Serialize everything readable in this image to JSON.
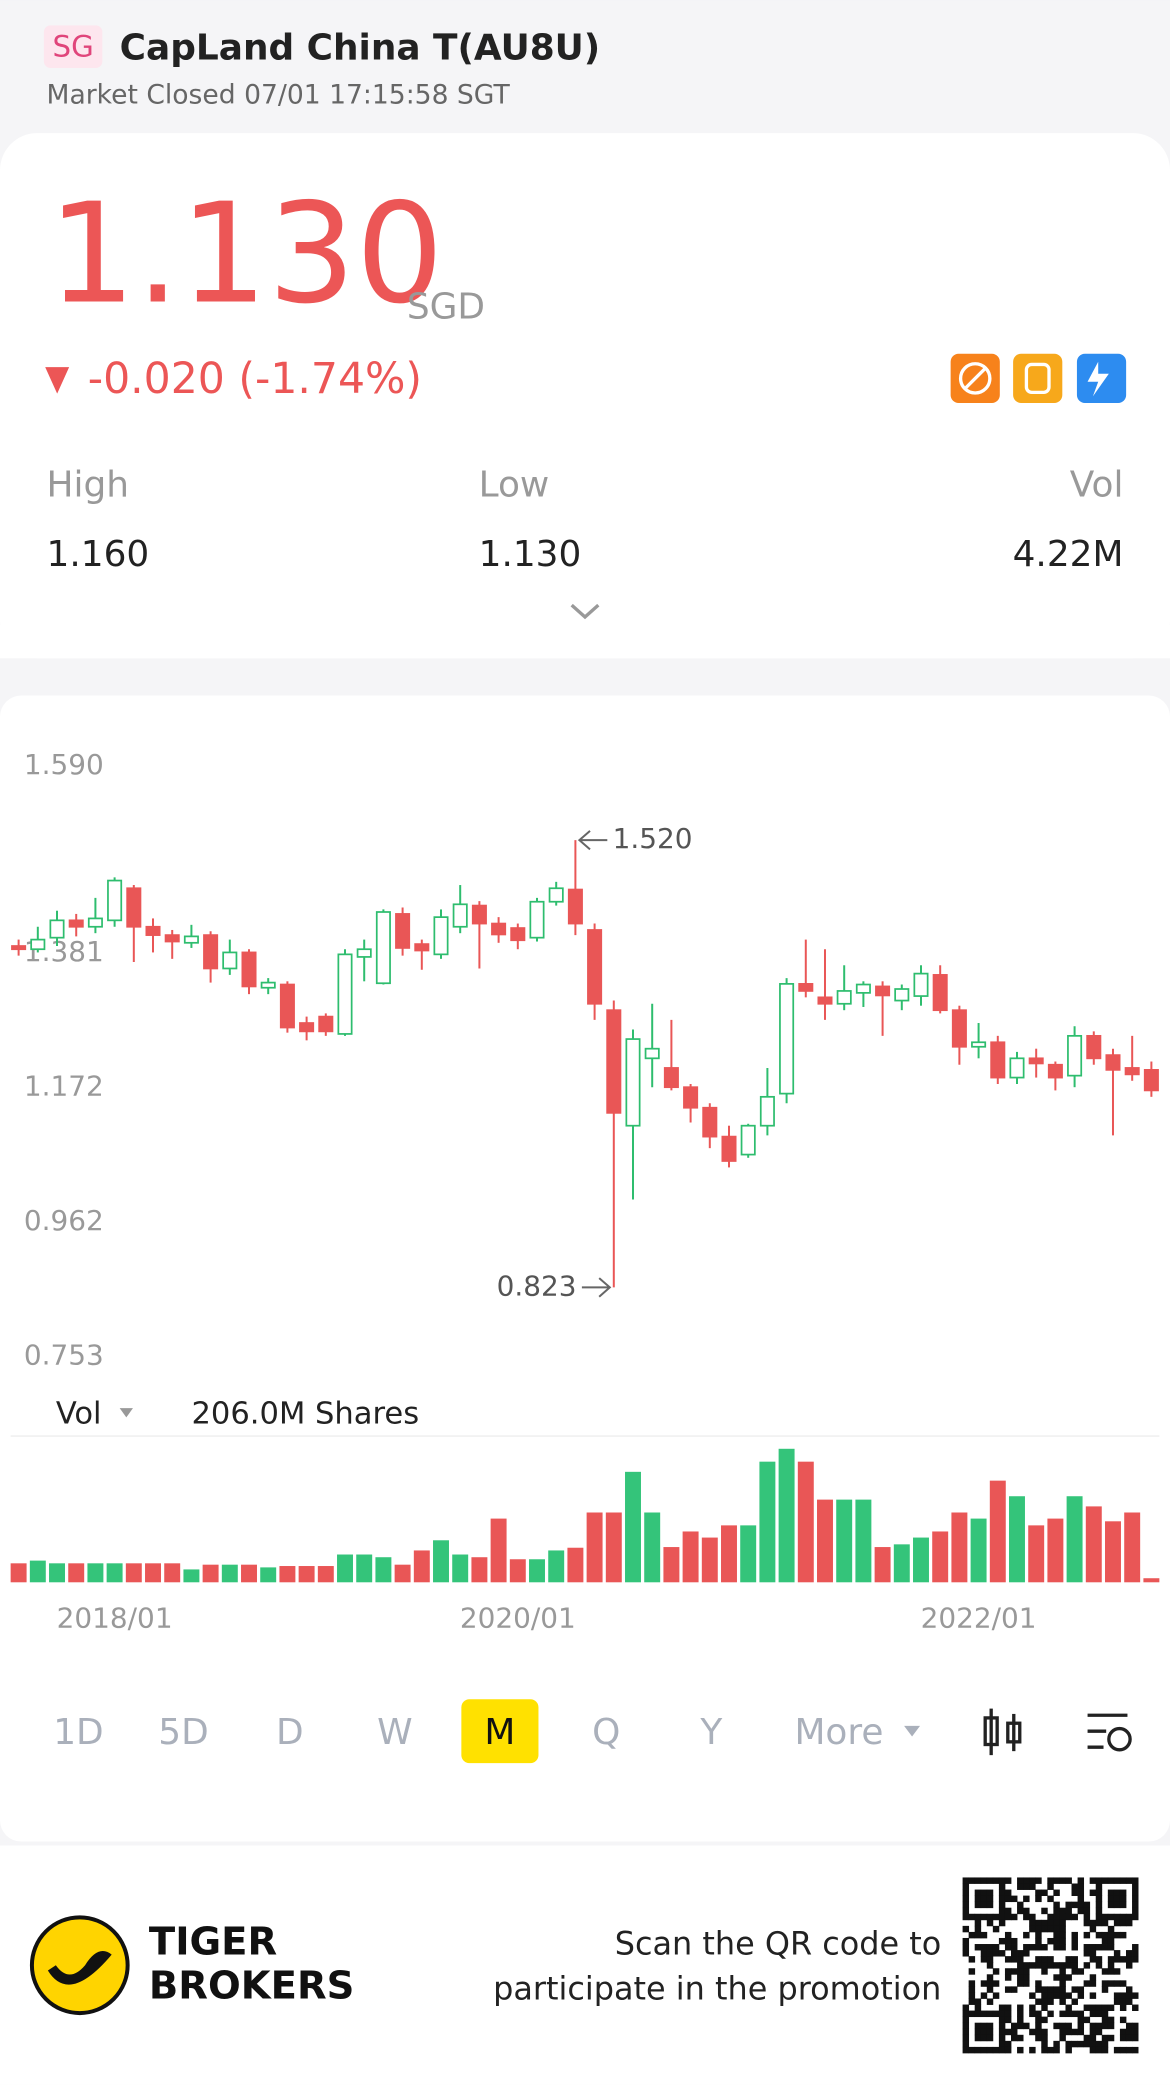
{
  "header": {
    "badge": "SG",
    "name": "CapLand China T(AU8U)",
    "status": "Market Closed 07/01 17:15:58 SGT"
  },
  "quote": {
    "price": "1.130",
    "currency": "SGD",
    "change": "-0.020 (-1.74%)",
    "stats": [
      {
        "label": "High",
        "value": "1.160"
      },
      {
        "label": "Low",
        "value": "1.130"
      },
      {
        "label": "Vol",
        "value": "4.22M"
      }
    ]
  },
  "chart_data": {
    "type": "candlestick",
    "up_color": "#2ebd6e",
    "down_color": "#e95656",
    "open": [
      1.355,
      1.35,
      1.368,
      1.395,
      1.385,
      1.395,
      1.445,
      1.385,
      1.372,
      1.36,
      1.372,
      1.32,
      1.345,
      1.29,
      1.295,
      1.235,
      1.245,
      1.218,
      1.338,
      1.297,
      1.405,
      1.358,
      1.342,
      1.385,
      1.418,
      1.39,
      1.383,
      1.368,
      1.424,
      1.443,
      1.38,
      1.255,
      1.075,
      1.18,
      1.165,
      1.135,
      1.103,
      1.058,
      1.03,
      1.075,
      1.125,
      1.296,
      1.275,
      1.265,
      1.282,
      1.292,
      1.27,
      1.277,
      1.31,
      1.255,
      1.198,
      1.205,
      1.15,
      1.18,
      1.17,
      1.153,
      1.215,
      1.185,
      1.165,
      1.162
    ],
    "high": [
      1.365,
      1.385,
      1.41,
      1.405,
      1.43,
      1.462,
      1.45,
      1.398,
      1.38,
      1.388,
      1.378,
      1.365,
      1.35,
      1.305,
      1.3,
      1.245,
      1.25,
      1.35,
      1.365,
      1.412,
      1.415,
      1.365,
      1.412,
      1.45,
      1.425,
      1.4,
      1.39,
      1.43,
      1.455,
      1.52,
      1.39,
      1.27,
      1.225,
      1.265,
      1.24,
      1.14,
      1.11,
      1.075,
      1.078,
      1.165,
      1.305,
      1.365,
      1.35,
      1.325,
      1.3,
      1.3,
      1.295,
      1.325,
      1.325,
      1.262,
      1.235,
      1.215,
      1.19,
      1.195,
      1.175,
      1.23,
      1.222,
      1.195,
      1.215,
      1.175
    ],
    "low": [
      1.34,
      1.345,
      1.355,
      1.37,
      1.375,
      1.385,
      1.33,
      1.345,
      1.335,
      1.352,
      1.298,
      1.31,
      1.28,
      1.28,
      1.22,
      1.208,
      1.215,
      1.215,
      1.3,
      1.295,
      1.34,
      1.318,
      1.335,
      1.375,
      1.32,
      1.36,
      1.35,
      1.362,
      1.418,
      1.372,
      1.24,
      0.823,
      0.96,
      1.135,
      1.13,
      1.08,
      1.04,
      1.01,
      1.025,
      1.06,
      1.11,
      1.275,
      1.24,
      1.255,
      1.26,
      1.215,
      1.255,
      1.262,
      1.25,
      1.17,
      1.18,
      1.14,
      1.14,
      1.15,
      1.13,
      1.135,
      1.17,
      1.06,
      1.145,
      1.12
    ],
    "close": [
      1.35,
      1.365,
      1.395,
      1.385,
      1.398,
      1.457,
      1.385,
      1.372,
      1.362,
      1.37,
      1.32,
      1.345,
      1.292,
      1.298,
      1.228,
      1.222,
      1.222,
      1.342,
      1.35,
      1.408,
      1.352,
      1.348,
      1.4,
      1.42,
      1.39,
      1.373,
      1.364,
      1.424,
      1.445,
      1.39,
      1.265,
      1.095,
      1.21,
      1.195,
      1.135,
      1.103,
      1.058,
      1.02,
      1.075,
      1.12,
      1.296,
      1.285,
      1.265,
      1.285,
      1.295,
      1.278,
      1.288,
      1.312,
      1.255,
      1.198,
      1.205,
      1.15,
      1.18,
      1.172,
      1.15,
      1.215,
      1.18,
      1.162,
      1.155,
      1.13
    ],
    "ylim": [
      0.753,
      1.59
    ],
    "yticks": [
      {
        "value": 1.59,
        "label": "1.590"
      },
      1.381,
      1.172,
      0.962,
      0.753
    ],
    "max_label": {
      "value": 1.52,
      "label": "1.520"
    },
    "min_label": 0.823,
    "xticks": [
      {
        "value": 5,
        "label": "2018/01"
      },
      {
        "value": 26,
        "label": "2020/01"
      },
      {
        "value": 50,
        "label": "2022/01"
      }
    ],
    "volume": {
      "label": "Vol",
      "text": "206.0M Shares",
      "ylim": [
        0,
        206
      ],
      "values": [
        28,
        32,
        28,
        28,
        28,
        28,
        28,
        28,
        28,
        19,
        26,
        26,
        26,
        22,
        24,
        24,
        24,
        41,
        41,
        37,
        26,
        47,
        62,
        41,
        37,
        94,
        34,
        34,
        47,
        51,
        103,
        103,
        163,
        103,
        52,
        75,
        66,
        84,
        84,
        178,
        197,
        178,
        122,
        122,
        122,
        52,
        56,
        66,
        75,
        103,
        94,
        150,
        127,
        84,
        94,
        127,
        112,
        90,
        103,
        6
      ]
    }
  },
  "periods": {
    "items": [
      "1D",
      "5D",
      "D",
      "W",
      "M",
      "Q",
      "Y",
      "More"
    ],
    "active": 4
  },
  "footer": {
    "brand": [
      "TIGER",
      "BROKERS"
    ],
    "promo": [
      "Scan the QR code to",
      "participate in the promotion"
    ]
  }
}
